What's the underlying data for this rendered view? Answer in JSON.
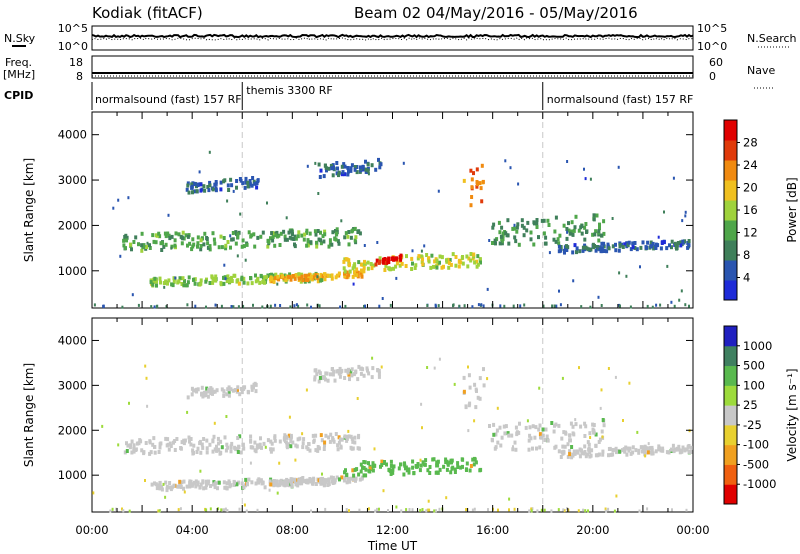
{
  "header": {
    "station": "Kodiak (fitACF)",
    "beam_range": "Beam 02  04/May/2016 - 05/May/2016"
  },
  "strips": {
    "nsky_label": "N.Sky",
    "nsky_top": "10^5",
    "nsky_bottom": "10^0",
    "nsearch_label": "N.Search",
    "nsearch_top": "10^5",
    "nsearch_bottom": "10^0",
    "freq_label": "Freq.",
    "freq_unit": "[MHz]",
    "freq_top": "18",
    "freq_bottom": "8",
    "nave_label": "Nave",
    "nave_top": "60",
    "nave_bottom": "0",
    "cpid_label": "CPID",
    "modes": [
      {
        "label": "normalsound (fast) 157 RF",
        "start_hour": 0
      },
      {
        "label": "themis 3300 RF",
        "start_hour": 6
      },
      {
        "label": "normalsound (fast) 157 RF",
        "start_hour": 18
      }
    ]
  },
  "colors": {
    "power_scale": [
      "#1e2bd8",
      "#2a55b0",
      "#3f7f5a",
      "#4fa64a",
      "#9fd23c",
      "#f0c020",
      "#f08a10",
      "#e03a0a",
      "#e00000"
    ],
    "velocity_scale": [
      "#2020c0",
      "#3f8060",
      "#59b94e",
      "#9ddb3c",
      "#c8c8c8",
      "#e8d030",
      "#f0a020",
      "#f06010",
      "#e00000"
    ],
    "axis": "#000000",
    "dashed_line": "#c8c8c8"
  },
  "chart_data": [
    {
      "type": "heatmap",
      "name": "power",
      "title": "",
      "xlabel": "",
      "ylabel": "Slant Range [km]",
      "xlim": [
        0,
        24
      ],
      "ylim": [
        180,
        4500
      ],
      "x_ticks": [],
      "y_ticks": [
        "1000",
        "2000",
        "3000",
        "4000"
      ],
      "y_tick_values": [
        1000,
        2000,
        3000,
        4000
      ],
      "colorbar": {
        "label": "Power [dB]",
        "ticks": [
          "4",
          "8",
          "12",
          "16",
          "20",
          "24",
          "28"
        ],
        "tick_values": [
          4,
          8,
          12,
          16,
          20,
          24,
          28
        ],
        "range": [
          0,
          30
        ]
      },
      "bands": [
        {
          "x": [
            2.3,
            9.5
          ],
          "y0": 720,
          "y1": 980,
          "v": 14
        },
        {
          "x": [
            7.0,
            10.8
          ],
          "y0": 820,
          "y1": 1000,
          "v": 20
        },
        {
          "x": [
            1.2,
            10.7
          ],
          "y0": 1450,
          "y1": 2000,
          "v": 11
        },
        {
          "x": [
            3.7,
            6.6
          ],
          "y0": 2750,
          "y1": 3100,
          "v": 6
        },
        {
          "x": [
            8.8,
            11.5
          ],
          "y0": 3100,
          "y1": 3500,
          "v": 6
        },
        {
          "x": [
            10.0,
            15.5
          ],
          "y0": 1000,
          "y1": 1450,
          "v": 16
        },
        {
          "x": [
            11.2,
            12.3
          ],
          "y0": 1200,
          "y1": 1350,
          "v": 28
        },
        {
          "x": [
            15.8,
            20.4
          ],
          "y0": 1500,
          "y1": 2350,
          "v": 10
        },
        {
          "x": [
            18.6,
            23.9
          ],
          "y0": 1450,
          "y1": 1700,
          "v": 6
        },
        {
          "x": [
            14.8,
            15.6
          ],
          "y0": 2300,
          "y1": 3550,
          "v": 22
        }
      ]
    },
    {
      "type": "heatmap",
      "name": "velocity",
      "title": "",
      "xlabel": "Time UT",
      "ylabel": "Slant Range [km]",
      "xlim": [
        0,
        24
      ],
      "ylim": [
        180,
        4500
      ],
      "x_ticks": [
        "00:00",
        "04:00",
        "08:00",
        "12:00",
        "16:00",
        "20:00",
        "00:00"
      ],
      "x_tick_values": [
        0,
        4,
        8,
        12,
        16,
        20,
        24
      ],
      "y_ticks": [
        "1000",
        "2000",
        "3000",
        "4000"
      ],
      "y_tick_values": [
        1000,
        2000,
        3000,
        4000
      ],
      "colorbar": {
        "label": "Velocity [m s⁻¹]",
        "ticks": [
          "1000",
          "500",
          "100",
          "25",
          "-25",
          "-100",
          "-500",
          "-1000"
        ],
        "tick_values": [
          1000,
          500,
          100,
          25,
          -25,
          -100,
          -500,
          -1000
        ]
      },
      "bands": [
        {
          "x": [
            2.3,
            9.5
          ],
          "y0": 720,
          "y1": 980,
          "v": 0
        },
        {
          "x": [
            7.0,
            10.8
          ],
          "y0": 820,
          "y1": 1000,
          "v": 0
        },
        {
          "x": [
            1.2,
            10.7
          ],
          "y0": 1450,
          "y1": 2000,
          "v": 0
        },
        {
          "x": [
            3.7,
            6.6
          ],
          "y0": 2750,
          "y1": 3100,
          "v": 0
        },
        {
          "x": [
            8.8,
            11.5
          ],
          "y0": 3100,
          "y1": 3500,
          "v": 0
        },
        {
          "x": [
            10.0,
            15.5
          ],
          "y0": 1000,
          "y1": 1450,
          "v": 150
        },
        {
          "x": [
            15.8,
            20.4
          ],
          "y0": 1500,
          "y1": 2350,
          "v": 0
        },
        {
          "x": [
            18.6,
            23.9
          ],
          "y0": 1450,
          "y1": 1700,
          "v": 0
        },
        {
          "x": [
            14.8,
            15.6
          ],
          "y0": 2300,
          "y1": 3550,
          "v": 0
        }
      ]
    }
  ]
}
